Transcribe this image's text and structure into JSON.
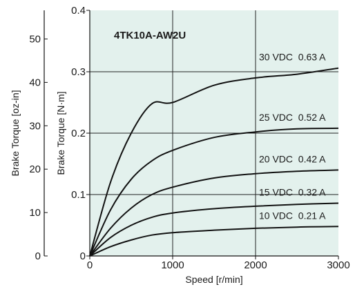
{
  "chart_data": {
    "type": "line",
    "title": "4TK10A-AW2U",
    "xlabel": "Speed [r/min]",
    "ylabel": "Brake Torque [N·m]",
    "ylabel_secondary": "Brake Torque [oz-in]",
    "xlim": [
      0,
      3000
    ],
    "ylim": [
      0,
      0.4
    ],
    "ylim_secondary": [
      0,
      56.6
    ],
    "x_ticks": [
      "0",
      "1000",
      "2000",
      "3000"
    ],
    "y_ticks": [
      "0",
      "0.1",
      "0.2",
      "0.3",
      "0.4"
    ],
    "y_ticks_secondary": [
      "0",
      "10",
      "20",
      "30",
      "40",
      "50"
    ],
    "grid": true,
    "background": "#e3f1ed",
    "series": [
      {
        "name": "30 VDC  0.63 A",
        "x": [
          0,
          250,
          500,
          750,
          1000,
          1500,
          2000,
          2500,
          3000
        ],
        "y": [
          0,
          0.12,
          0.2,
          0.248,
          0.25,
          0.278,
          0.29,
          0.296,
          0.306
        ]
      },
      {
        "name": "25 VDC  0.52 A",
        "x": [
          0,
          250,
          500,
          750,
          1000,
          1500,
          2000,
          2500,
          3000
        ],
        "y": [
          0,
          0.075,
          0.125,
          0.155,
          0.172,
          0.193,
          0.202,
          0.207,
          0.208
        ]
      },
      {
        "name": "20 VDC  0.42 A",
        "x": [
          0,
          250,
          500,
          750,
          1000,
          1500,
          2000,
          2500,
          3000
        ],
        "y": [
          0,
          0.045,
          0.078,
          0.1,
          0.112,
          0.127,
          0.134,
          0.138,
          0.14
        ]
      },
      {
        "name": "15 VDC  0.32 A",
        "x": [
          0,
          250,
          500,
          750,
          1000,
          1500,
          2000,
          2500,
          3000
        ],
        "y": [
          0,
          0.03,
          0.05,
          0.063,
          0.07,
          0.077,
          0.081,
          0.084,
          0.086
        ]
      },
      {
        "name": "10 VDC  0.21 A",
        "x": [
          0,
          250,
          500,
          750,
          1000,
          1500,
          2000,
          2500,
          3000
        ],
        "y": [
          0,
          0.015,
          0.026,
          0.034,
          0.038,
          0.042,
          0.045,
          0.047,
          0.048
        ]
      }
    ]
  }
}
